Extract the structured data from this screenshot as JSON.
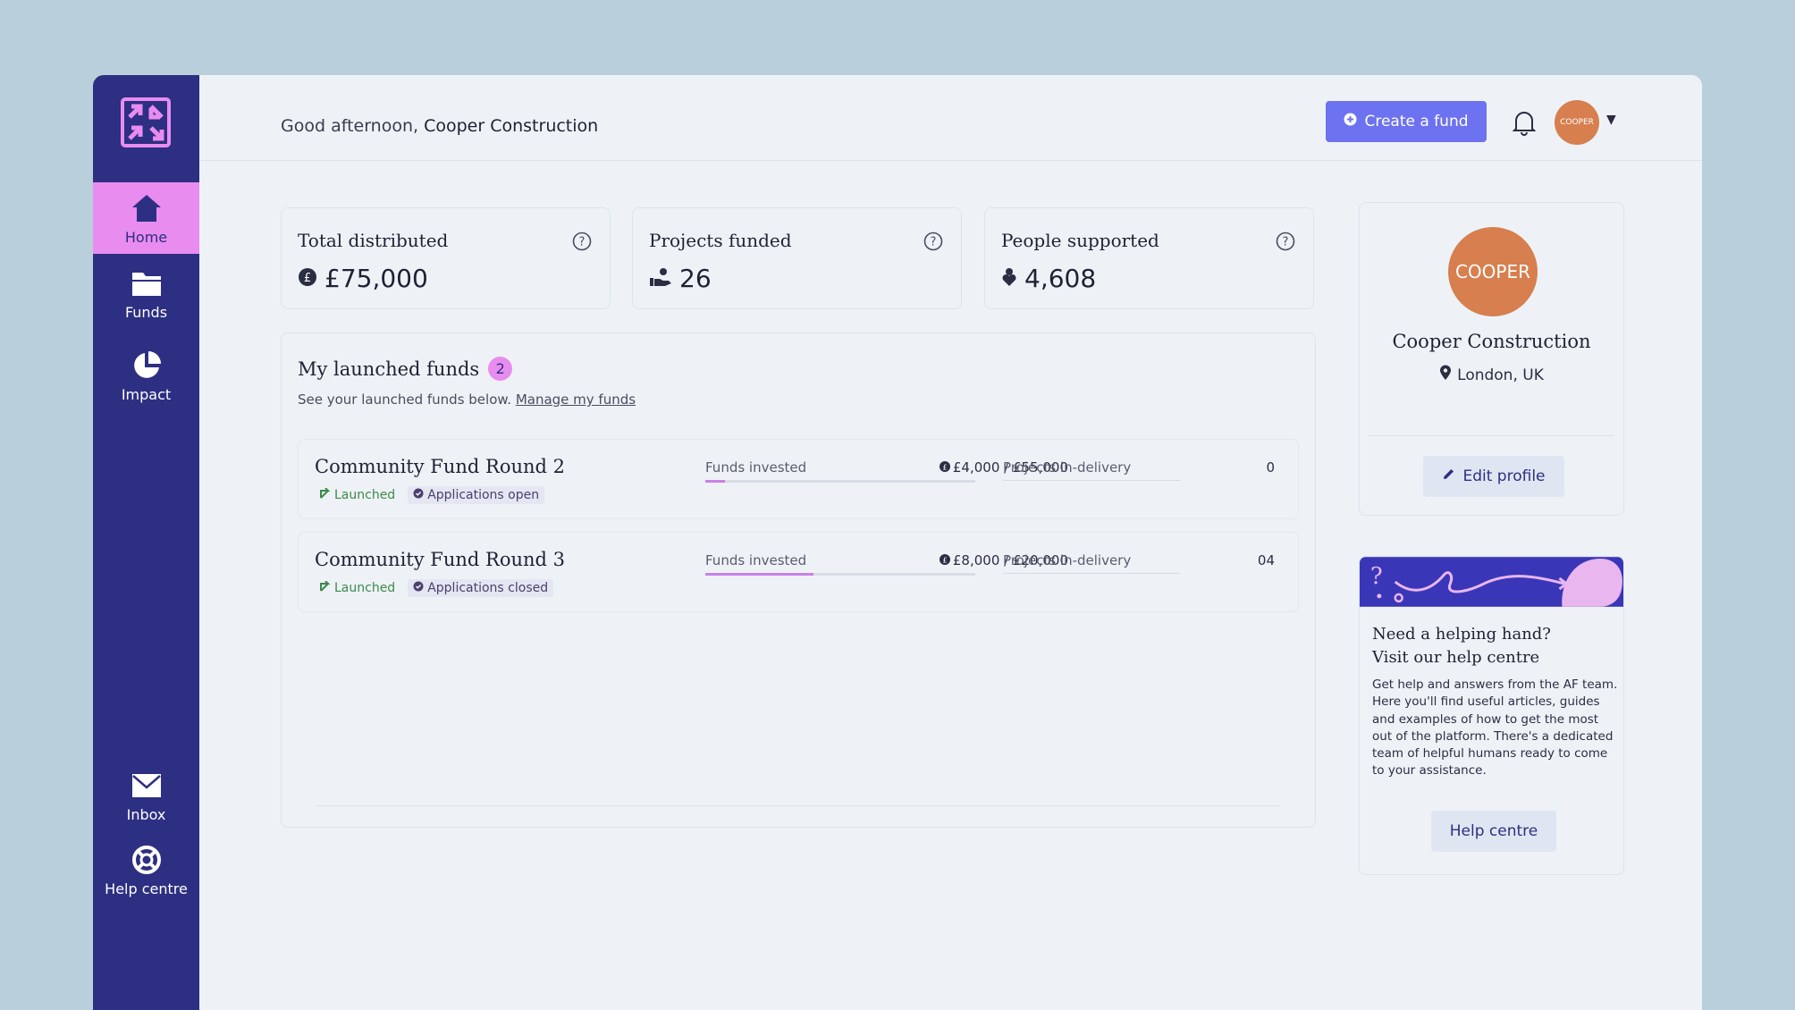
{
  "header": {
    "greeting_prefix": "Good afternoon,",
    "org_name": "Cooper Construction",
    "create_fund_label": "Create a fund",
    "avatar_text": "COOPER"
  },
  "sidebar": {
    "items": [
      {
        "label": "Home",
        "icon": "home-icon",
        "active": true
      },
      {
        "label": "Funds",
        "icon": "folder-icon"
      },
      {
        "label": "Impact",
        "icon": "pie-chart-icon"
      },
      {
        "label": "Inbox",
        "icon": "envelope-icon"
      },
      {
        "label": "Help centre",
        "icon": "lifebuoy-icon"
      }
    ]
  },
  "stats": [
    {
      "label": "Total distributed",
      "value": "£75,000",
      "icon": "pound-coin-icon"
    },
    {
      "label": "Projects funded",
      "value": "26",
      "icon": "hand-coins-icon"
    },
    {
      "label": "People supported",
      "value": "4,608",
      "icon": "person-heart-icon"
    }
  ],
  "funds": {
    "title": "My launched funds",
    "count": "2",
    "subtitle": "See your launched funds below.",
    "manage_link": "Manage my funds",
    "rows": [
      {
        "name": "Community Fund Round 2",
        "status": "Launched",
        "applications": "Applications open",
        "invested_label": "Funds invested",
        "invested_value": "£4,000 / £55,000",
        "invested_fraction": 0.073,
        "delivery_label": "Projects in-delivery",
        "delivery_value": "0"
      },
      {
        "name": "Community Fund Round 3",
        "status": "Launched",
        "applications": "Applications closed",
        "invested_label": "Funds invested",
        "invested_value": "£8,000 / £20,000",
        "invested_fraction": 0.4,
        "delivery_label": "Projects in-delivery",
        "delivery_value": "04"
      }
    ]
  },
  "profile": {
    "avatar_text": "COOPER",
    "name": "Cooper Construction",
    "location": "London, UK",
    "edit_label": "Edit profile"
  },
  "help": {
    "title_line1": "Need a helping hand?",
    "title_line2": "Visit our help centre",
    "text": "Get help and answers from the AF team. Here you'll find useful articles, guides and examples of how to get the most out of the platform. There's a dedicated team of helpful humans ready to come to your assistance.",
    "button_label": "Help centre"
  },
  "colors": {
    "sidebar": "#2d2f82",
    "accent_pink": "#e88cf0",
    "primary_button": "#6c72f0",
    "avatar": "#d77f4e",
    "launched_green": "#3e8a4a"
  }
}
